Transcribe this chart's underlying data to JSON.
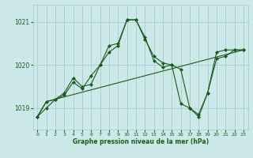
{
  "xlabel": "Graphe pression niveau de la mer (hPa)",
  "xlim": [
    -0.5,
    23.5
  ],
  "ylim": [
    1018.5,
    1021.4
  ],
  "yticks": [
    1019,
    1020,
    1021
  ],
  "xticks": [
    0,
    1,
    2,
    3,
    4,
    5,
    6,
    7,
    8,
    9,
    10,
    11,
    12,
    13,
    14,
    15,
    16,
    17,
    18,
    19,
    20,
    21,
    22,
    23
  ],
  "bg_color": "#cce8e8",
  "grid_color": "#aacccc",
  "line_color": "#1a5c1a",
  "line1_x": [
    0,
    1,
    2,
    3,
    4,
    5,
    6,
    7,
    8,
    9,
    10,
    11,
    12,
    13,
    14,
    15,
    16,
    17,
    18,
    19,
    20,
    21,
    22,
    23
  ],
  "line1_y": [
    1018.8,
    1019.15,
    1019.2,
    1019.35,
    1019.7,
    1019.5,
    1019.55,
    1020.0,
    1020.45,
    1020.5,
    1021.05,
    1021.05,
    1020.65,
    1020.1,
    1019.95,
    1020.0,
    1019.9,
    1019.0,
    1018.8,
    1019.35,
    1020.15,
    1020.2,
    1020.35,
    1020.35
  ],
  "line2_x": [
    0,
    1,
    2,
    3,
    4,
    5,
    6,
    7,
    8,
    9,
    10,
    11,
    12,
    13,
    14,
    15,
    16,
    17,
    18,
    19,
    20,
    21,
    22,
    23
  ],
  "line2_y": [
    1018.8,
    1019.0,
    1019.2,
    1019.3,
    1019.6,
    1019.45,
    1019.75,
    1020.0,
    1020.3,
    1020.45,
    1021.05,
    1021.05,
    1020.6,
    1020.2,
    1020.05,
    1020.0,
    1019.1,
    1019.0,
    1018.85,
    1019.35,
    1020.3,
    1020.35,
    1020.35,
    1020.35
  ],
  "line3_x": [
    0,
    1,
    23
  ],
  "line3_y": [
    1018.8,
    1019.15,
    1020.35
  ],
  "marker": "D",
  "marker_size": 2.5
}
